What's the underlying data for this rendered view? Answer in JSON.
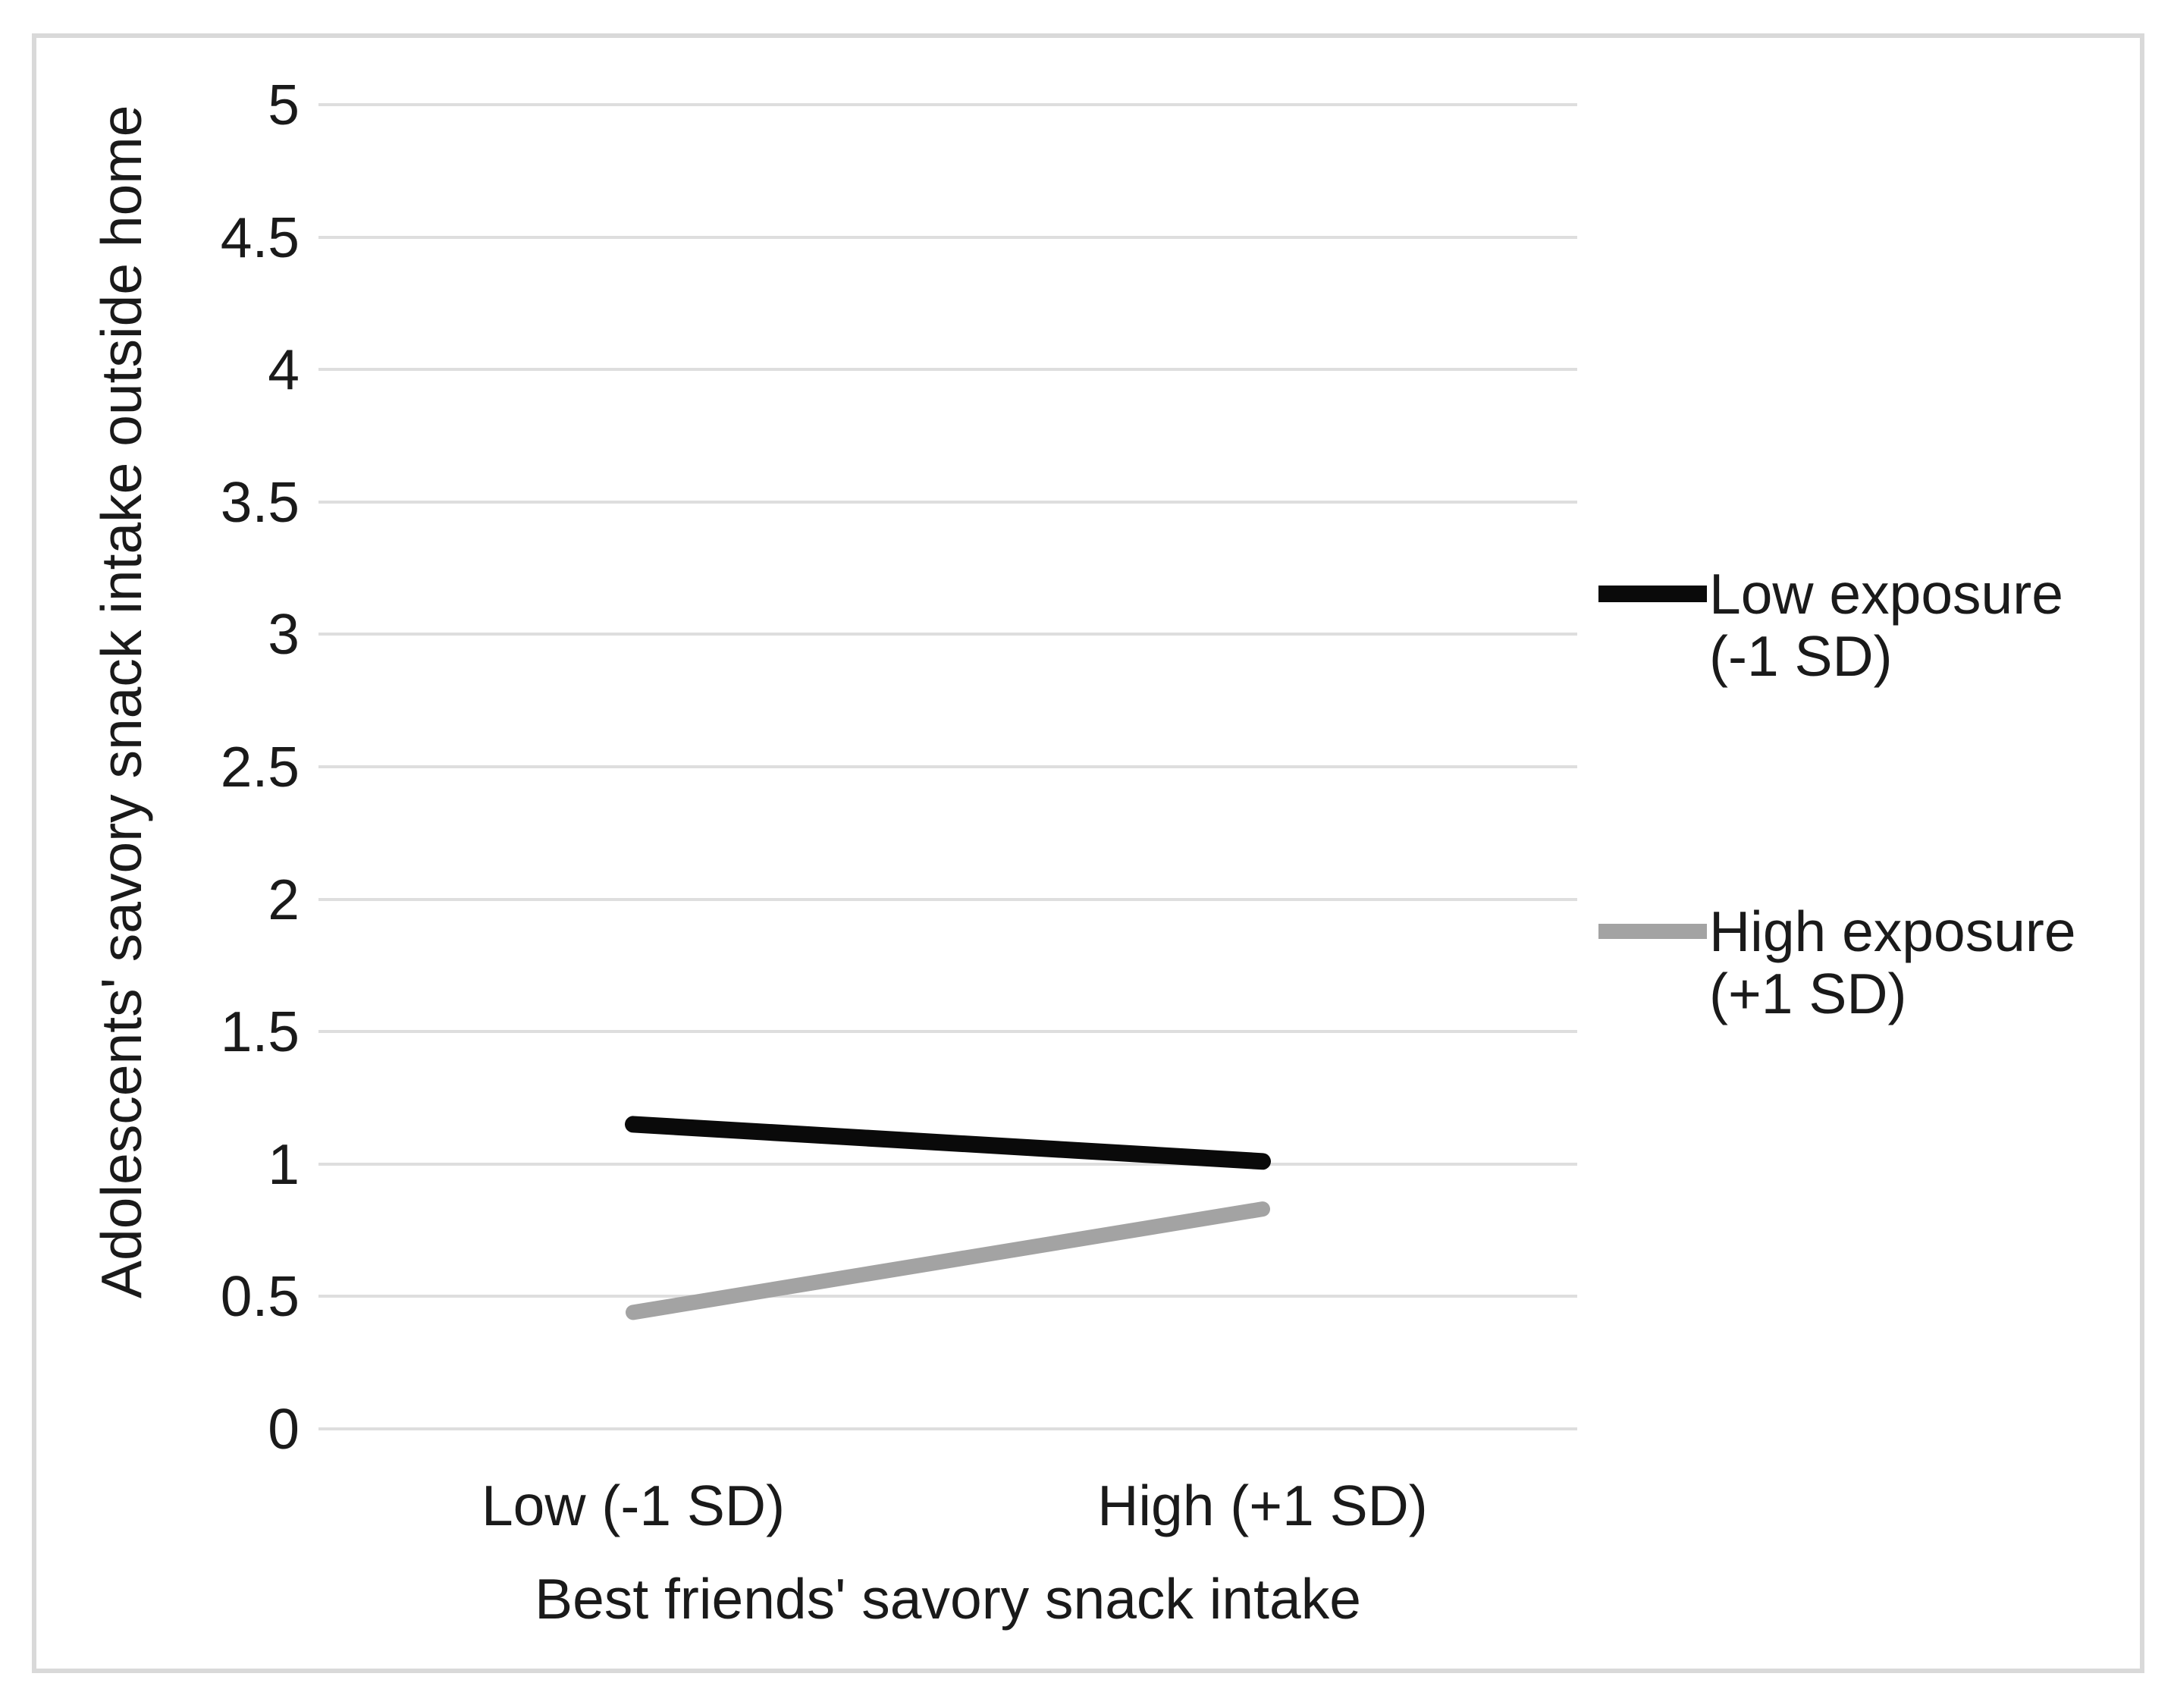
{
  "figure": {
    "background": "#ffffff",
    "border_color": "#d9d9d9"
  },
  "chart_data": {
    "type": "line",
    "title": "",
    "xlabel": "Best friends' savory snack intake",
    "ylabel": "Adolescents' savory snack intake outside home",
    "categories": [
      "Low (-1 SD)",
      "High (+1 SD)"
    ],
    "series": [
      {
        "name": "Low exposure (-1 SD)",
        "label_lines": [
          "Low exposure",
          "(-1 SD)"
        ],
        "color": "#0a0a0a",
        "values": [
          1.15,
          1.01
        ]
      },
      {
        "name": "High exposure (+1 SD)",
        "label_lines": [
          "High exposure",
          "(+1 SD)"
        ],
        "color": "#a3a3a3",
        "values": [
          0.44,
          0.83
        ]
      }
    ],
    "ylim": [
      0,
      5
    ],
    "ytick_step": 0.5,
    "yticks": [
      0,
      0.5,
      1,
      1.5,
      2,
      2.5,
      3,
      3.5,
      4,
      4.5,
      5
    ],
    "grid": "horizontal",
    "gridline_color": "#dedede",
    "legend_position": "right"
  }
}
